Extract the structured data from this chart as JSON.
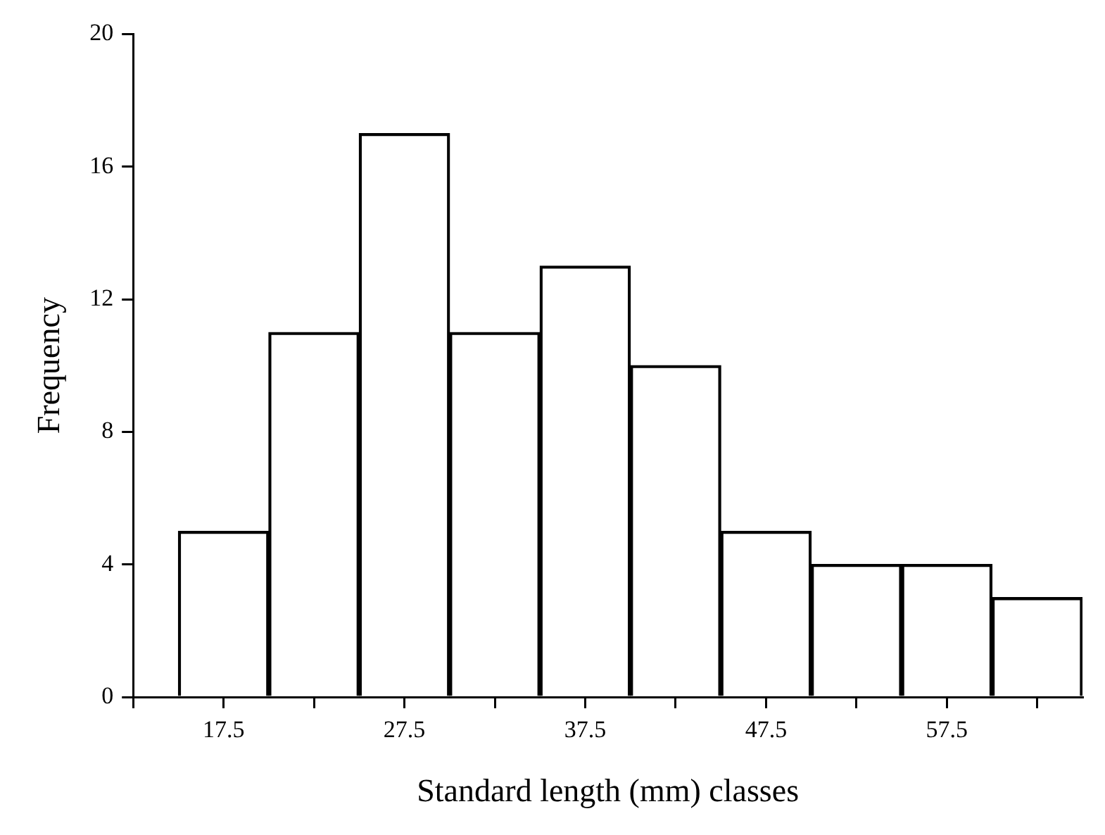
{
  "chart_data": {
    "type": "histogram",
    "xlabel": "Standard length (mm) classes",
    "ylabel": "Frequency",
    "bins": [
      15,
      20,
      25,
      30,
      35,
      40,
      45,
      50,
      55,
      60,
      65
    ],
    "values": [
      5,
      11,
      17,
      11,
      13,
      10,
      5,
      4,
      4,
      3
    ],
    "color": "#000000",
    "xlim": [
      12.5,
      65
    ],
    "xticks": [
      {
        "value": 12.5,
        "label": null
      },
      17.5,
      {
        "value": 22.5,
        "label": null
      },
      27.5,
      {
        "value": 32.5,
        "label": null
      },
      37.5,
      {
        "value": 42.5,
        "label": null
      },
      47.5,
      {
        "value": 52.5,
        "label": null
      },
      57.5,
      {
        "value": 62.5,
        "label": null
      }
    ],
    "ylim": [
      0,
      20
    ],
    "yticks": [
      0,
      4,
      8,
      12,
      16,
      20
    ],
    "grid": false,
    "legend": false
  }
}
